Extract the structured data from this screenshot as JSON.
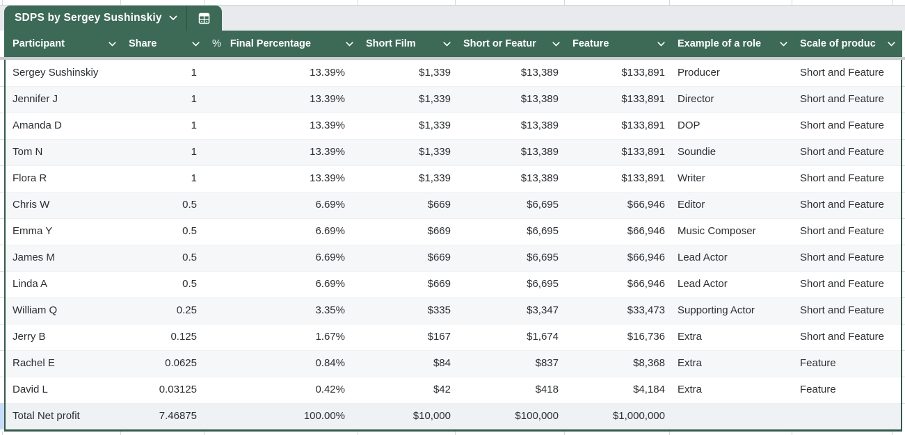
{
  "tab": {
    "title": "SDPS by Sergey Sushinskiy",
    "chevron_icon": "chevron-down",
    "table_icon": "table-grid"
  },
  "colors": {
    "header_green": "#3c6a57",
    "border_green": "#35594a",
    "tab_bar_gray": "#e8eaed",
    "banded_row": "#f6f7f9",
    "total_row": "#eff2f4",
    "selection_blue": "#c7dcfb",
    "header_text": "#ffffff",
    "body_text": "#2b2f33"
  },
  "table": {
    "columns": [
      {
        "label": "Participant",
        "align": "left"
      },
      {
        "label": "Share",
        "align": "right"
      },
      {
        "label": "Final Percentage",
        "align": "right",
        "format_indicator": "%"
      },
      {
        "label": "Short Film",
        "align": "right"
      },
      {
        "label": "Short or Featur",
        "align": "right"
      },
      {
        "label": "Feature",
        "align": "right"
      },
      {
        "label": "Example of a role",
        "align": "left"
      },
      {
        "label": "Scale of produc",
        "align": "left"
      }
    ],
    "rows": [
      [
        "Sergey Sushinskiy",
        "1",
        "13.39%",
        "$1,339",
        "$13,389",
        "$133,891",
        "Producer",
        "Short and Feature"
      ],
      [
        "Jennifer J",
        "1",
        "13.39%",
        "$1,339",
        "$13,389",
        "$133,891",
        "Director",
        "Short and Feature"
      ],
      [
        "Amanda D",
        "1",
        "13.39%",
        "$1,339",
        "$13,389",
        "$133,891",
        "DOP",
        "Short and Feature"
      ],
      [
        "Tom N",
        "1",
        "13.39%",
        "$1,339",
        "$13,389",
        "$133,891",
        "Soundie",
        "Short and Feature"
      ],
      [
        "Flora R",
        "1",
        "13.39%",
        "$1,339",
        "$13,389",
        "$133,891",
        "Writer",
        "Short and Feature"
      ],
      [
        "Chris W",
        "0.5",
        "6.69%",
        "$669",
        "$6,695",
        "$66,946",
        "Editor",
        "Short and Feature"
      ],
      [
        "Emma Y",
        "0.5",
        "6.69%",
        "$669",
        "$6,695",
        "$66,946",
        "Music Composer",
        "Short and Feature"
      ],
      [
        "James M",
        "0.5",
        "6.69%",
        "$669",
        "$6,695",
        "$66,946",
        "Lead Actor",
        "Short and Feature"
      ],
      [
        "Linda A",
        "0.5",
        "6.69%",
        "$669",
        "$6,695",
        "$66,946",
        "Lead Actor",
        "Short and Feature"
      ],
      [
        "William Q",
        "0.25",
        "3.35%",
        "$335",
        "$3,347",
        "$33,473",
        "Supporting Actor",
        "Short and Feature"
      ],
      [
        "Jerry B",
        "0.125",
        "1.67%",
        "$167",
        "$1,674",
        "$16,736",
        "Extra",
        "Short and Feature"
      ],
      [
        "Rachel E",
        "0.0625",
        "0.84%",
        "$84",
        "$837",
        "$8,368",
        "Extra",
        "Feature"
      ],
      [
        "David L",
        "0.03125",
        "0.42%",
        "$42",
        "$418",
        "$4,184",
        "Extra",
        "Feature"
      ]
    ],
    "total_row": [
      "Total Net profit",
      "7.46875",
      "100.00%",
      "$10,000",
      "$100,000",
      "$1,000,000",
      "",
      ""
    ]
  }
}
